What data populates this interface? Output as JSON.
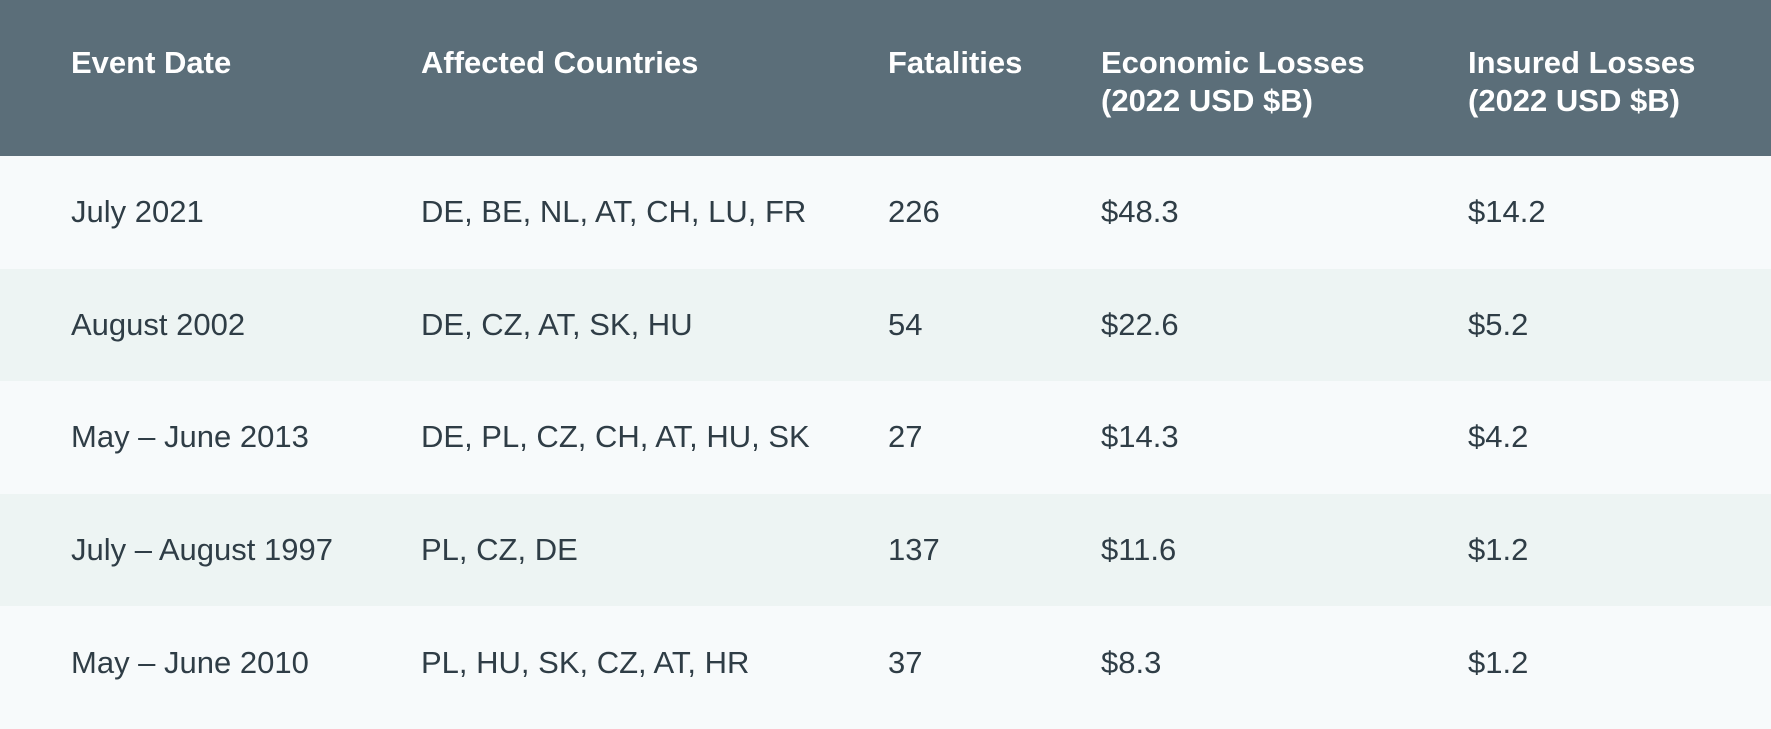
{
  "header": {
    "col1": [
      "Event Date"
    ],
    "col2": [
      "Affected Countries"
    ],
    "col3": [
      "Fatalities"
    ],
    "col4": [
      "Economic Losses",
      "(2022 USD $B)"
    ],
    "col5": [
      "Insured Losses",
      "(2022 USD $B)"
    ]
  },
  "rows": [
    {
      "date": "July 2021",
      "countries": "DE, BE, NL, AT, CH, LU, FR",
      "fatalities": "226",
      "economic": "$48.3",
      "insured": "$14.2"
    },
    {
      "date": "August 2002",
      "countries": "DE, CZ, AT, SK, HU",
      "fatalities": "54",
      "economic": "$22.6",
      "insured": "$5.2"
    },
    {
      "date": "May – June 2013",
      "countries": "DE, PL, CZ, CH, AT, HU, SK",
      "fatalities": "27",
      "economic": "$14.3",
      "insured": "$4.2"
    },
    {
      "date": "July – August 1997",
      "countries": "PL, CZ, DE",
      "fatalities": "137",
      "economic": "$11.6",
      "insured": "$1.2"
    },
    {
      "date": "May – June 2010",
      "countries": "PL, HU, SK, CZ, AT, HR",
      "fatalities": "37",
      "economic": "$8.3",
      "insured": "$1.2"
    }
  ],
  "colors": {
    "header_bg": "#5b6e79",
    "row_odd_bg": "#f7fafb",
    "row_even_bg": "#edf4f3",
    "text": "#2f3d46"
  }
}
